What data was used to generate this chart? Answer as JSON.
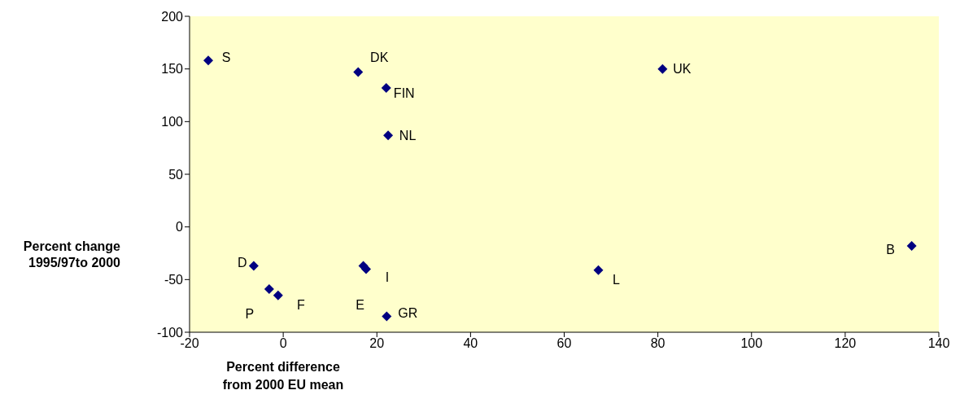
{
  "chart_data": {
    "type": "scatter",
    "xlabel": "Percent difference\nfrom 2000 EU mean",
    "ylabel": "Percent change\n1995/97to 2000",
    "x": [
      -16,
      16,
      22,
      22.4,
      81,
      -6.3,
      17.1,
      17.7,
      -3,
      -1.1,
      22.1,
      67.3,
      134.2
    ],
    "series": [
      {
        "color": "#000080",
        "values": [
          158,
          147,
          132,
          87,
          150,
          -37,
          -37,
          -40,
          -59,
          -65,
          -85,
          -41,
          -18
        ],
        "value_labels": [
          "S",
          "DK",
          "FIN",
          "NL",
          "UK",
          "D",
          "E",
          "I",
          "P",
          "F",
          "GR",
          "L",
          "B"
        ]
      }
    ],
    "xlim": [
      -20,
      140
    ],
    "xticks": [
      -20,
      0,
      20,
      40,
      60,
      80,
      100,
      120,
      140
    ],
    "ylim": [
      -100,
      200
    ],
    "yticks": [
      -100,
      -50,
      0,
      50,
      100,
      150,
      200
    ],
    "marker": "diamond"
  }
}
